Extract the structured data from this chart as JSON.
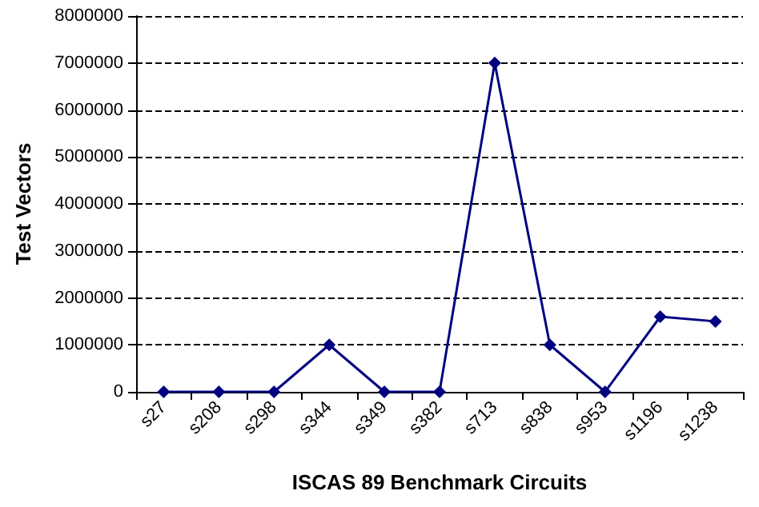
{
  "chart_data": {
    "type": "line",
    "xlabel": "ISCAS 89 Benchmark Circuits",
    "ylabel": "Test Vectors",
    "categories": [
      "s27",
      "s208",
      "s298",
      "s344",
      "s349",
      "s382",
      "s713",
      "s838",
      "s953",
      "s1196",
      "s1238"
    ],
    "series": [
      {
        "color": "#000080",
        "values": [
          0,
          0,
          0,
          1000000,
          0,
          0,
          7000000,
          1000000,
          0,
          1600000,
          1500000
        ]
      }
    ],
    "ylim": [
      0,
      8000000
    ],
    "yticks": [
      0,
      1000000,
      2000000,
      3000000,
      4000000,
      5000000,
      6000000,
      7000000,
      8000000
    ],
    "grid": "y",
    "marker": "diamond",
    "line_style": "solid"
  }
}
